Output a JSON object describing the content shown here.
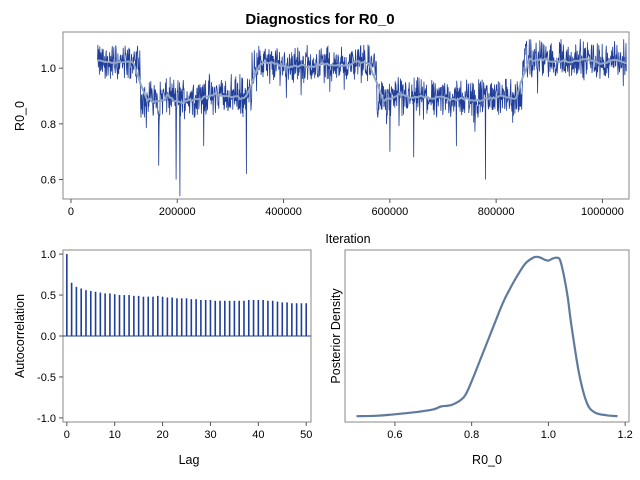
{
  "figure": {
    "title": "Diagnostics for R0_0"
  },
  "colors": {
    "trace": "#1f3d99",
    "smooth": "#8fa6c8",
    "acf": "#1f3d99",
    "density": "#5f7a9c",
    "frame": "#888888"
  },
  "chart_data": [
    {
      "id": "trace",
      "type": "line",
      "title": "",
      "xlabel": "Iteration",
      "ylabel": "R0_0",
      "xlim": [
        -15000,
        1050000
      ],
      "ylim": [
        0.53,
        1.13
      ],
      "xticks": [
        0,
        200000,
        400000,
        600000,
        800000,
        1000000
      ],
      "xtick_labels": [
        "0",
        "200000",
        "400000",
        "600000",
        "800000",
        "1000000"
      ],
      "yticks": [
        0.6,
        0.8,
        1.0
      ],
      "ytick_labels": [
        "0.6",
        "0.8",
        "1.0"
      ],
      "x_start": 50000,
      "x_end": 1045000,
      "regimes": [
        {
          "from": 50000,
          "to": 130000,
          "level": 1.02
        },
        {
          "from": 130000,
          "to": 250000,
          "level": 0.895
        },
        {
          "from": 250000,
          "to": 340000,
          "level": 0.905
        },
        {
          "from": 340000,
          "to": 575000,
          "level": 1.015
        },
        {
          "from": 575000,
          "to": 850000,
          "level": 0.895
        },
        {
          "from": 850000,
          "to": 1045000,
          "level": 1.03
        }
      ],
      "dips": [
        {
          "x": 205000,
          "y": 0.54
        },
        {
          "x": 198000,
          "y": 0.6
        },
        {
          "x": 165000,
          "y": 0.65
        },
        {
          "x": 330000,
          "y": 0.62
        },
        {
          "x": 780000,
          "y": 0.6
        },
        {
          "x": 600000,
          "y": 0.7
        },
        {
          "x": 645000,
          "y": 0.68
        },
        {
          "x": 725000,
          "y": 0.72
        },
        {
          "x": 250000,
          "y": 0.72
        }
      ]
    },
    {
      "id": "acf",
      "type": "bar",
      "title": "",
      "xlabel": "Lag",
      "ylabel": "Autocorrelation",
      "xlim": [
        -0.8,
        51
      ],
      "ylim": [
        -1.05,
        1.05
      ],
      "xticks": [
        0,
        10,
        20,
        30,
        40,
        50
      ],
      "xtick_labels": [
        "0",
        "10",
        "20",
        "30",
        "40",
        "50"
      ],
      "yticks": [
        -1.0,
        -0.5,
        0.0,
        0.5,
        1.0
      ],
      "ytick_labels": [
        "-1.0",
        "-0.5",
        "0.0",
        "0.5",
        "1.0"
      ],
      "lags": [
        0,
        1,
        2,
        3,
        4,
        5,
        6,
        7,
        8,
        9,
        10,
        11,
        12,
        13,
        14,
        15,
        16,
        17,
        18,
        19,
        20,
        21,
        22,
        23,
        24,
        25,
        26,
        27,
        28,
        29,
        30,
        31,
        32,
        33,
        34,
        35,
        36,
        37,
        38,
        39,
        40,
        41,
        42,
        43,
        44,
        45,
        46,
        47,
        48,
        49,
        50
      ],
      "values": [
        1.0,
        0.65,
        0.6,
        0.58,
        0.56,
        0.55,
        0.54,
        0.53,
        0.52,
        0.52,
        0.51,
        0.5,
        0.5,
        0.5,
        0.49,
        0.49,
        0.48,
        0.48,
        0.48,
        0.49,
        0.48,
        0.47,
        0.47,
        0.46,
        0.46,
        0.46,
        0.45,
        0.45,
        0.44,
        0.44,
        0.44,
        0.43,
        0.43,
        0.43,
        0.43,
        0.43,
        0.43,
        0.43,
        0.44,
        0.44,
        0.44,
        0.44,
        0.43,
        0.43,
        0.42,
        0.41,
        0.41,
        0.4,
        0.4,
        0.4,
        0.4
      ]
    },
    {
      "id": "density",
      "type": "line",
      "title": "",
      "xlabel": "R0_0",
      "ylabel": "Posterior Density",
      "xlim": [
        0.47,
        1.21
      ],
      "ylim": [
        -0.3,
        8.6
      ],
      "xticks": [
        0.6,
        0.8,
        1.0,
        1.2
      ],
      "xtick_labels": [
        "0.6",
        "0.8",
        "1.0",
        "1.2"
      ],
      "x": [
        0.5,
        0.55,
        0.6,
        0.65,
        0.7,
        0.72,
        0.75,
        0.78,
        0.8,
        0.82,
        0.85,
        0.88,
        0.9,
        0.92,
        0.94,
        0.96,
        0.97,
        0.98,
        0.99,
        1.0,
        1.01,
        1.02,
        1.03,
        1.04,
        1.05,
        1.06,
        1.08,
        1.1,
        1.12,
        1.15,
        1.18
      ],
      "y": [
        0.0,
        0.02,
        0.1,
        0.2,
        0.35,
        0.5,
        0.6,
        1.0,
        1.8,
        2.8,
        4.3,
        5.8,
        6.6,
        7.3,
        7.9,
        8.2,
        8.25,
        8.2,
        8.1,
        8.05,
        8.15,
        8.2,
        8.1,
        7.3,
        6.2,
        4.7,
        2.2,
        0.7,
        0.2,
        0.05,
        0.0
      ]
    }
  ]
}
